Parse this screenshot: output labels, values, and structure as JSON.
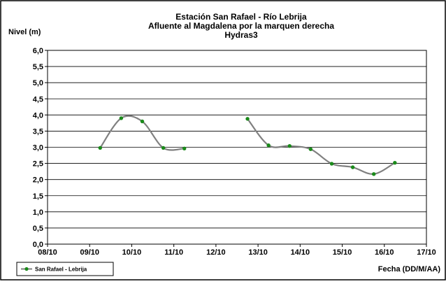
{
  "chart_data": {
    "type": "line",
    "title_lines": [
      "Estación San Rafael - Río Lebrija",
      "Afluente al Magdalena por la marquen derecha",
      "Hydras3"
    ],
    "ylabel": "Nivel (m)",
    "xlabel": "Fecha (DD/M/AA)",
    "ylim": [
      0,
      6
    ],
    "y_ticks": [
      "0,0",
      "0,5",
      "1,0",
      "1,5",
      "2,0",
      "2,5",
      "3,0",
      "3,5",
      "4,0",
      "4,5",
      "5,0",
      "5,5",
      "6,0"
    ],
    "x_ticks": [
      "08/10",
      "09/10",
      "10/10",
      "11/10",
      "12/10",
      "13/10",
      "14/10",
      "15/10",
      "16/10",
      "17/10"
    ],
    "grid": "horizontal",
    "legend_position": "bottom-left",
    "series": [
      {
        "name": "San Rafael - Lebrija",
        "color": "#808080",
        "marker_color": "#1a8a1a",
        "segments": [
          [
            {
              "x": "09/10 06:00",
              "y": 2.98
            },
            {
              "x": "09/10 18:00",
              "y": 3.9
            },
            {
              "x": "10/10 06:00",
              "y": 3.8
            },
            {
              "x": "10/10 18:00",
              "y": 2.98
            },
            {
              "x": "11/10 06:00",
              "y": 2.96
            }
          ],
          [
            {
              "x": "12/10 18:00",
              "y": 3.88
            },
            {
              "x": "13/10 06:00",
              "y": 3.06
            },
            {
              "x": "13/10 18:00",
              "y": 3.04
            },
            {
              "x": "14/10 06:00",
              "y": 2.94
            },
            {
              "x": "14/10 18:00",
              "y": 2.49
            },
            {
              "x": "15/10 06:00",
              "y": 2.38
            },
            {
              "x": "15/10 18:00",
              "y": 2.17
            },
            {
              "x": "16/10 06:00",
              "y": 2.52
            }
          ]
        ]
      }
    ]
  }
}
